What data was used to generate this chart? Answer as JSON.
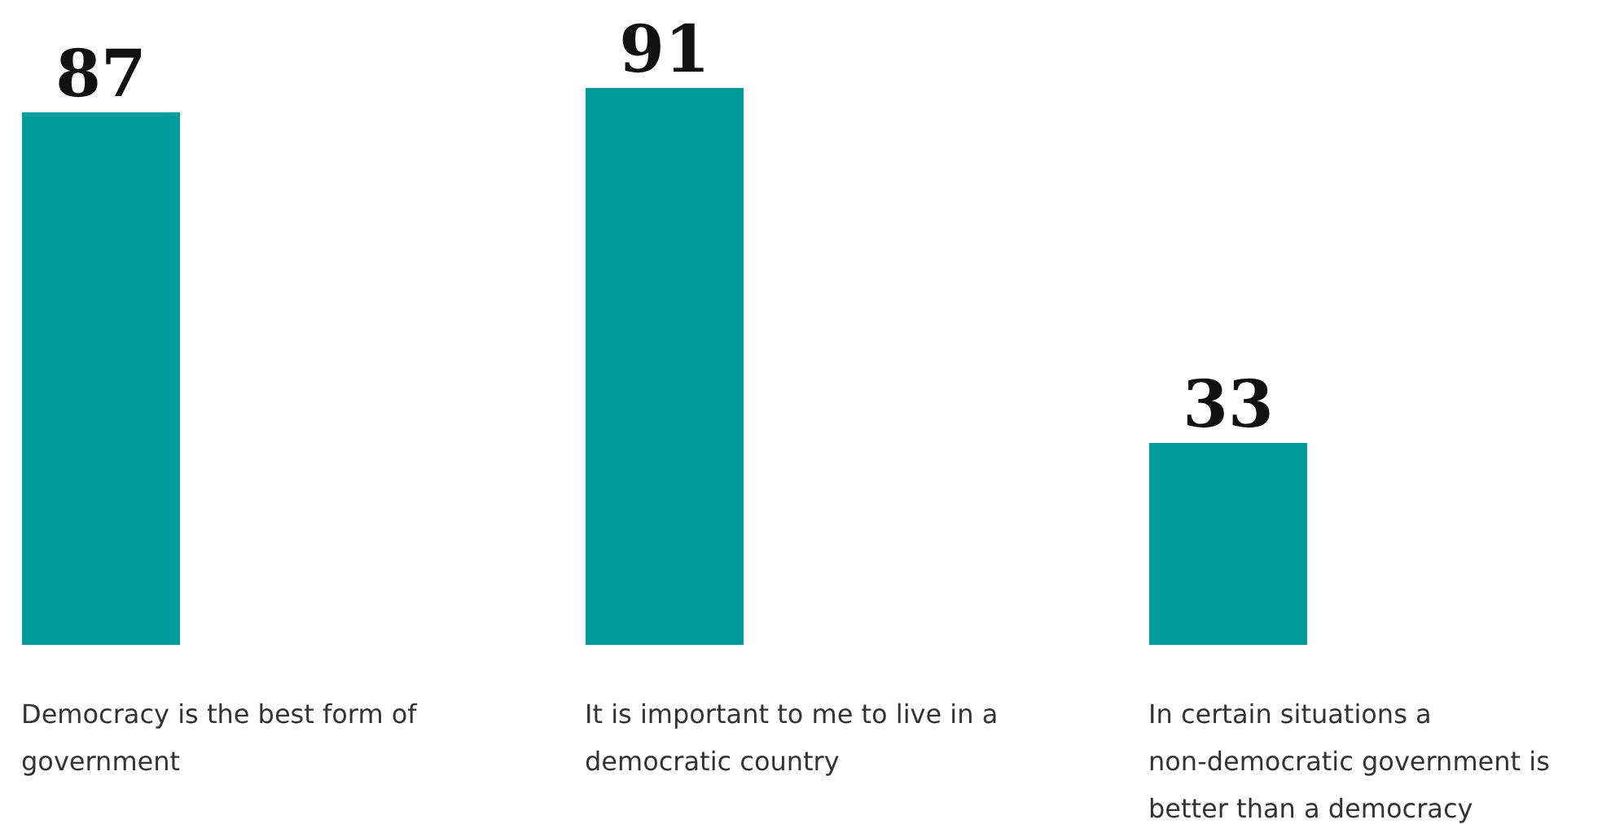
{
  "chart_data": {
    "type": "bar",
    "categories": [
      "Democracy is the best form of government",
      "It is important to me to live in a democratic country",
      "In certain situations a non-democratic government is better than a democracy"
    ],
    "values": [
      87,
      91,
      33
    ],
    "color": "#009b9b",
    "data_labels": true
  }
}
